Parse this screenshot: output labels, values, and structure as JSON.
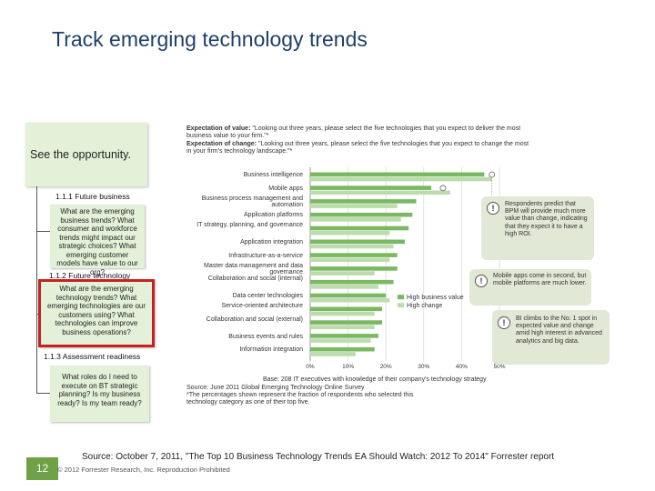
{
  "slide": {
    "title": "Track emerging technology trends",
    "opportunity_label": "See the opportunity.",
    "sections": [
      {
        "title": "1.1.1 Future business",
        "question": "What are the emerging business trends? What consumer and workforce trends might impact our strategic choices? What emerging customer models have value to our org?"
      },
      {
        "title": "1.1.2 Future technology",
        "question": "What are the emerging technology trends? What emerging technologies are our customers using? What technologies can improve business operations?"
      },
      {
        "title": "1.1.3 Assessment readiness",
        "question": "What roles do I need to execute on BT strategic planning? Is my business ready? Is my team ready?"
      }
    ],
    "page_number": "12",
    "source": "Source: October 7, 2011, \"The Top 10 Business Technology Trends EA Should Watch: 2012 To 2014\" Forrester report",
    "copyright": "© 2012 Forrester Research, Inc. Reproduction Prohibited",
    "colors": {
      "accent_green": "#6fa246",
      "box_fill": "#e3f1d8",
      "highlight_border": "#c52222"
    }
  },
  "chart_data": {
    "type": "bar",
    "header": {
      "value_bold": "Expectation of value:",
      "value_text": "\"Looking out three years, please select the five technologies that you expect to deliver the most business value to your firm.\"*",
      "change_bold": "Expectation of change:",
      "change_text": "\"Looking out three years, please select the five technologies that you expect to change the most in your firm's technology landscape.\"*"
    },
    "categories": [
      "Business intelligence",
      "Mobile apps",
      "Business process management and automation",
      "Application platforms",
      "IT strategy, planning, and governance",
      "Application integration",
      "Infrastructure-as-a-service",
      "Master data management and data governance",
      "Collaboration and social (internal)",
      "Data center technologies",
      "Service-oriented architecture",
      "Collaboration and social (external)",
      "Business events and rules",
      "Information integration"
    ],
    "series": [
      {
        "name": "High business value",
        "color": "#7ab862",
        "values": [
          46,
          32,
          28,
          27,
          26,
          25,
          23,
          23,
          22,
          20,
          19,
          19,
          18,
          17
        ]
      },
      {
        "name": "High change",
        "color": "#bcdcae",
        "values": [
          48,
          37,
          23,
          24,
          21,
          22,
          21,
          17,
          18,
          21,
          17,
          17,
          16,
          12
        ]
      }
    ],
    "xticks": [
      "0%",
      "10%",
      "20%",
      "30%",
      "40%",
      "50%"
    ],
    "xlim": [
      0,
      50
    ],
    "callouts": [
      "Respondents predict that BPM will provide much more value than change, indicating that they expect it to have a high ROI.",
      "Mobile apps come in second, but mobile platforms are much lower.",
      "BI climbs to the No. 1 spot in expected value and change amid high interest in advanced analytics and big data."
    ],
    "base_note": "Base: 208 IT executives with knowledge of their company's technology strategy",
    "source_note": "Source: June 2011 Global Emerging Technology Online Survey",
    "footnote": "*The percentages shown represent the fraction of respondents who selected this technology category as one of their top five."
  }
}
